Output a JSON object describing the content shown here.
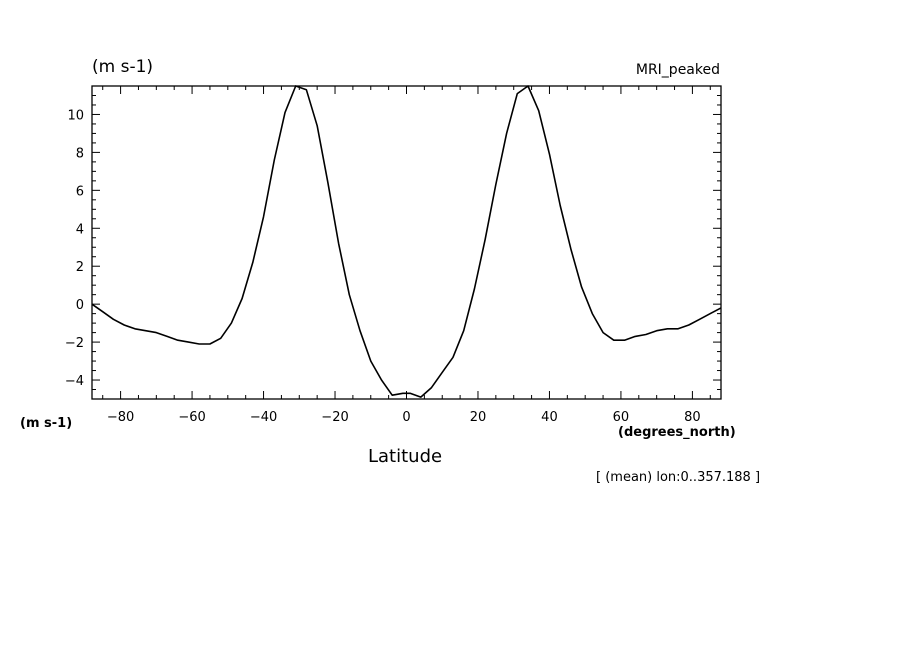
{
  "labels": {
    "top_unit": "(m s-1)",
    "model_name": "MRI_peaked",
    "left_unit": "(m s-1)",
    "x_unit": "(degrees_north)",
    "x_title": "Latitude",
    "footnote": "[ (mean) lon:0..357.188 ]"
  },
  "chart_data": {
    "type": "line",
    "title": "",
    "xlabel": "Latitude",
    "ylabel": "(m s-1)",
    "xlim": [
      -88,
      88
    ],
    "ylim": [
      -5,
      11.5
    ],
    "x_ticks": [
      -80,
      -60,
      -40,
      -20,
      0,
      20,
      40,
      60,
      80
    ],
    "y_ticks": [
      -4,
      -2,
      0,
      2,
      4,
      6,
      8,
      10
    ],
    "grid": false,
    "series": [
      {
        "x": [
          -88,
          -85,
          -82,
          -79,
          -76,
          -73,
          -70,
          -67,
          -64,
          -61,
          -58,
          -55,
          -52,
          -49,
          -46,
          -43,
          -40,
          -37,
          -34,
          -31,
          -28,
          -25,
          -22,
          -19,
          -16,
          -13,
          -10,
          -7,
          -4,
          -1,
          1,
          4,
          7,
          10,
          13,
          16,
          19,
          22,
          25,
          28,
          31,
          34,
          37,
          40,
          43,
          46,
          49,
          52,
          55,
          58,
          61,
          64,
          67,
          70,
          73,
          76,
          79,
          82,
          85,
          88
        ],
        "y": [
          0.0,
          -0.4,
          -0.8,
          -1.1,
          -1.3,
          -1.4,
          -1.5,
          -1.7,
          -1.9,
          -2.0,
          -2.1,
          -2.1,
          -1.8,
          -1.0,
          0.3,
          2.2,
          4.6,
          7.6,
          10.1,
          11.5,
          11.3,
          9.4,
          6.4,
          3.2,
          0.5,
          -1.4,
          -3.0,
          -4.0,
          -4.8,
          -4.7,
          -4.7,
          -4.9,
          -4.4,
          -3.6,
          -2.8,
          -1.4,
          0.8,
          3.4,
          6.3,
          9.0,
          11.1,
          11.5,
          10.2,
          7.9,
          5.2,
          2.9,
          0.9,
          -0.5,
          -1.5,
          -1.9,
          -1.9,
          -1.7,
          -1.6,
          -1.4,
          -1.3,
          -1.3,
          -1.1,
          -0.8,
          -0.5,
          -0.2
        ]
      }
    ]
  }
}
